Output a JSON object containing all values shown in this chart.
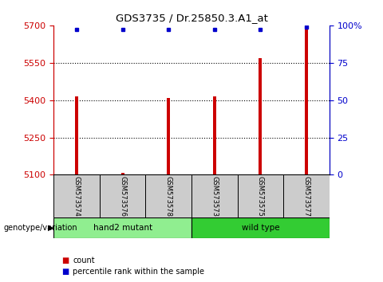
{
  "title": "GDS3735 / Dr.25850.3.A1_at",
  "samples": [
    "GSM573574",
    "GSM573576",
    "GSM573578",
    "GSM573573",
    "GSM573575",
    "GSM573577"
  ],
  "counts": [
    5415,
    5108,
    5410,
    5415,
    5570,
    5690
  ],
  "percentile_ranks": [
    97,
    97,
    97,
    97,
    97,
    99
  ],
  "ylim_left": [
    5100,
    5700
  ],
  "yticks_left": [
    5100,
    5250,
    5400,
    5550,
    5700
  ],
  "yticks_right": [
    0,
    25,
    50,
    75,
    100
  ],
  "ylim_right": [
    0,
    100
  ],
  "bar_color": "#cc0000",
  "dot_color": "#0000cc",
  "groups": [
    {
      "label": "hand2 mutant",
      "indices": [
        0,
        1,
        2
      ],
      "color": "#90ee90"
    },
    {
      "label": "wild type",
      "indices": [
        3,
        4,
        5
      ],
      "color": "#33cc33"
    }
  ],
  "group_label": "genotype/variation",
  "legend_count_label": "count",
  "legend_percentile_label": "percentile rank within the sample",
  "bar_width": 0.07,
  "background_color": "#ffffff",
  "plot_bg_color": "#ffffff",
  "left_tick_color": "#cc0000",
  "right_tick_color": "#0000cc",
  "sample_box_color": "#cccccc"
}
